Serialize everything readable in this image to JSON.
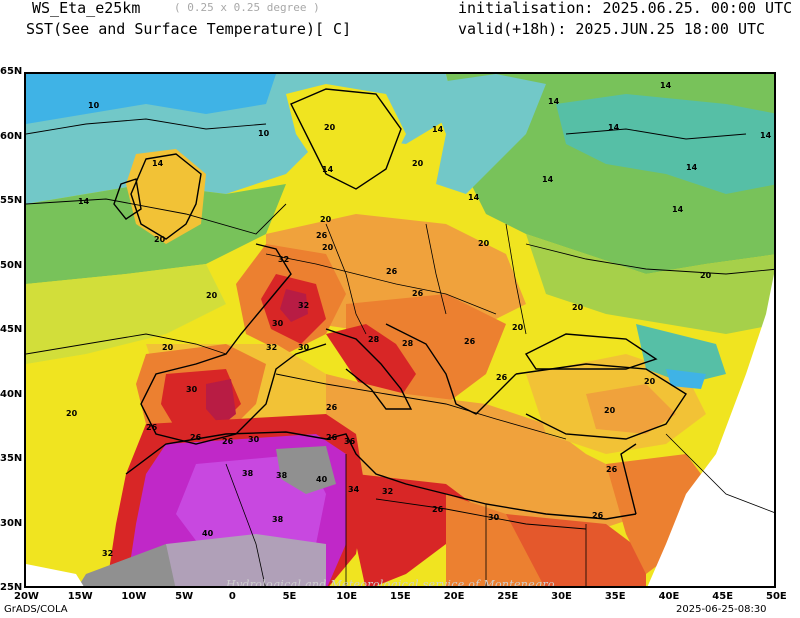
{
  "header": {
    "model": "WS_Eta_e25km",
    "resolution": "( 0.25 x 0.25 degree )",
    "variable": "SST(See and Surface Temperature)[ C]",
    "initialisation": "initialisation: 2025.06.25. 00:00 UTC",
    "valid": "valid(+18h): 2025.JUN.25 18:00 UTC"
  },
  "lat_labels": [
    "65N",
    "60N",
    "55N",
    "50N",
    "45N",
    "40N",
    "35N",
    "30N",
    "25N"
  ],
  "lon_labels": [
    "20W",
    "15W",
    "10W",
    "5W",
    "0",
    "5E",
    "10E",
    "15E",
    "20E",
    "25E",
    "30E",
    "35E",
    "40E",
    "45E",
    "50E"
  ],
  "contour_labels": [
    "10",
    "10",
    "14",
    "14",
    "14",
    "14",
    "14",
    "14",
    "14",
    "14",
    "14",
    "14",
    "14",
    "14",
    "20",
    "20",
    "20",
    "20",
    "20",
    "20",
    "20",
    "20",
    "20",
    "20",
    "20",
    "20",
    "20",
    "20",
    "26",
    "26",
    "26",
    "26",
    "26",
    "26",
    "26",
    "26",
    "26",
    "26",
    "26",
    "26",
    "32",
    "32",
    "30",
    "32",
    "30",
    "30",
    "32",
    "30",
    "38",
    "38",
    "40",
    "38",
    "34",
    "32",
    "40",
    "36",
    "26",
    "30",
    "28",
    "28"
  ],
  "watermark": "Hydrological and Meteorological service of Montenegro",
  "footer": {
    "left": "GrADS/COLA",
    "right": "2025-06-25-08:30"
  },
  "colors": {
    "c_lt8": "#3fb3e6",
    "c_10": "#72c8c8",
    "c_12": "#56bfa6",
    "c_14": "#78c25a",
    "c_16": "#a6d04a",
    "c_18": "#d2de3a",
    "c_20": "#f0e420",
    "c_22": "#f2c236",
    "c_24": "#f0a23c",
    "c_26": "#ec8030",
    "c_28": "#e4582c",
    "c_30": "#d82626",
    "c_32": "#b81c44",
    "c_34": "#a41a66",
    "c_36": "#c028c8",
    "c_38": "#c848e0",
    "c_40": "#b0a0b8",
    "c_42": "#909090"
  }
}
